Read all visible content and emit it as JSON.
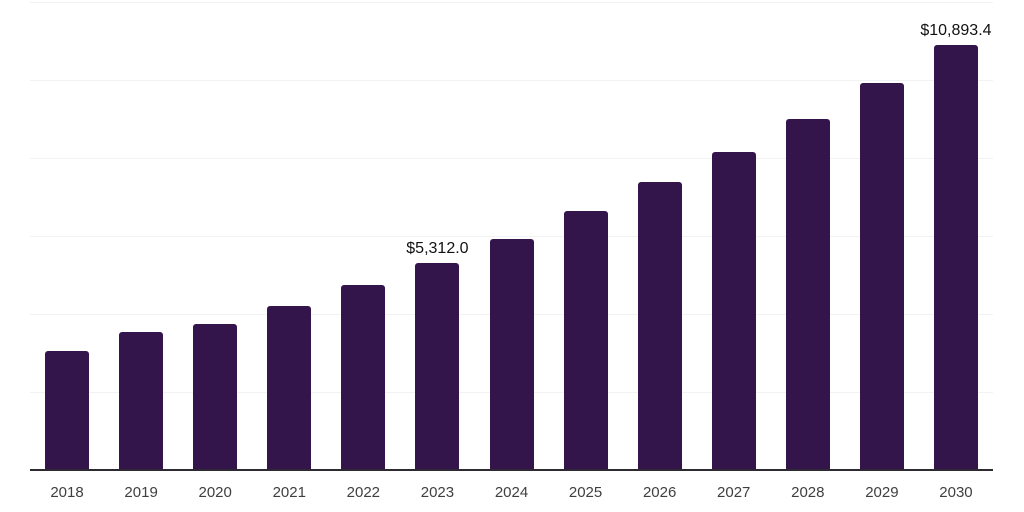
{
  "chart_data": {
    "type": "bar",
    "title": "",
    "xlabel": "",
    "ylabel": "",
    "categories": [
      "2018",
      "2019",
      "2020",
      "2021",
      "2022",
      "2023",
      "2024",
      "2025",
      "2026",
      "2027",
      "2028",
      "2029",
      "2030"
    ],
    "values": [
      3043,
      3545,
      3734,
      4194,
      4739,
      5312.0,
      5933,
      6632,
      7373,
      8166,
      9002,
      9931,
      10893.4
    ],
    "value_labels": {
      "2023": "$5,312.0",
      "2030": "$10,893.4"
    },
    "ylim": [
      0,
      12000
    ],
    "grid": {
      "visible": true,
      "step": 2000,
      "color": "#f2f1f3"
    },
    "legend": "none",
    "style": {
      "bar_color": "#34154B",
      "axis_line_color": "#2d2a31",
      "x_tick_color": "#3f3f3f",
      "data_label_color": "#111111",
      "background": "#ffffff"
    }
  }
}
